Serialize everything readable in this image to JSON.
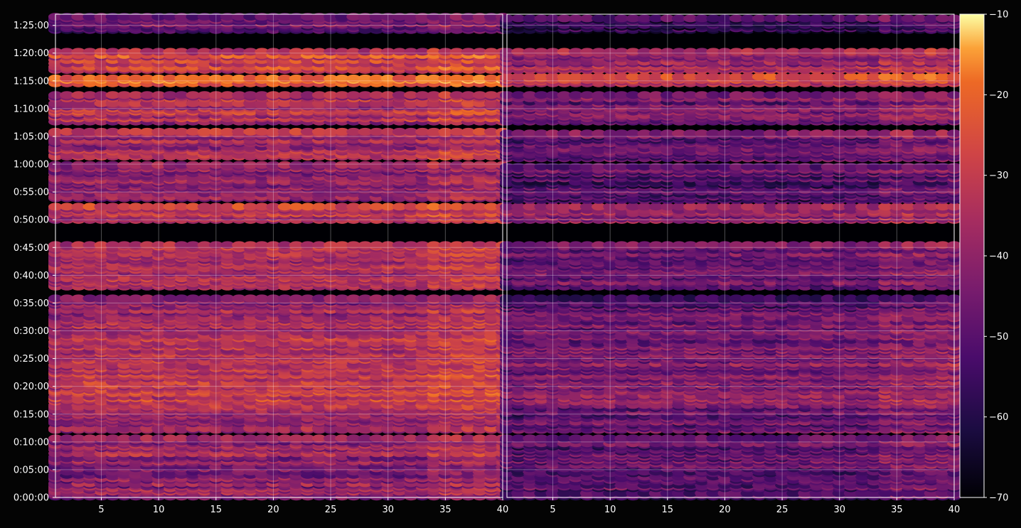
{
  "chart_data": {
    "type": "heatmap",
    "title": "",
    "xlabel": "",
    "ylabel": "",
    "background": "#040404",
    "colormap": "inferno",
    "grid": true,
    "panels": [
      {
        "name": "left",
        "xlim": [
          1,
          40
        ],
        "x_ticks": [
          5,
          10,
          15,
          20,
          25,
          30,
          35,
          40
        ],
        "x_tick_labels": [
          "5",
          "10",
          "15",
          "20",
          "25",
          "30",
          "35",
          "40"
        ]
      },
      {
        "name": "right",
        "xlim": [
          1,
          40
        ],
        "x_ticks": [
          5,
          10,
          15,
          20,
          25,
          30,
          35,
          40
        ],
        "x_tick_labels": [
          "5",
          "10",
          "15",
          "20",
          "25",
          "30",
          "35",
          "40"
        ]
      }
    ],
    "ylim_seconds": [
      0,
      5220
    ],
    "y_ticks_seconds": [
      0,
      300,
      600,
      900,
      1200,
      1500,
      1800,
      2100,
      2400,
      2700,
      3000,
      3300,
      3600,
      3900,
      4200,
      4500,
      4800,
      5100
    ],
    "y_tick_labels": [
      "0:00:00",
      "0:05:00",
      "0:10:00",
      "0:15:00",
      "0:20:00",
      "0:25:00",
      "0:30:00",
      "0:35:00",
      "0:40:00",
      "0:45:00",
      "0:50:00",
      "0:55:00",
      "1:00:00",
      "1:05:00",
      "1:10:00",
      "1:15:00",
      "1:20:00",
      "1:25:00"
    ],
    "colorbar": {
      "range": [
        -70,
        -10
      ],
      "ticks": [
        -70,
        -60,
        -50,
        -40,
        -30,
        -20,
        -10
      ],
      "tick_labels": [
        "−70",
        "−60",
        "−50",
        "−40",
        "−30",
        "−20",
        "−10"
      ]
    },
    "bands_seconds": [
      {
        "range": [
          5040,
          5200
        ],
        "value": -50
      },
      {
        "range": [
          4600,
          4820
        ],
        "value": -34
      },
      {
        "range": [
          4460,
          4540
        ],
        "value": -26
      },
      {
        "range": [
          4040,
          4340
        ],
        "value": -40
      },
      {
        "range": [
          3640,
          3960
        ],
        "value": -42
      },
      {
        "range": [
          3200,
          3600
        ],
        "value": -46
      },
      {
        "range": [
          2980,
          3140
        ],
        "value": -37
      },
      {
        "range": [
          2660,
          2720
        ],
        "value": -42
      },
      {
        "range": [
          2260,
          2640
        ],
        "value": -42
      },
      {
        "range": [
          1980,
          2160
        ],
        "value": -44
      },
      {
        "range": [
          1520,
          1960
        ],
        "value": -40
      },
      {
        "range": [
          980,
          1520
        ],
        "value": -38
      },
      {
        "range": [
          720,
          980
        ],
        "value": -42
      },
      {
        "range": [
          300,
          640
        ],
        "value": -44
      },
      {
        "range": [
          0,
          280
        ],
        "value": -45
      }
    ],
    "right_panel_offset": -9
  }
}
